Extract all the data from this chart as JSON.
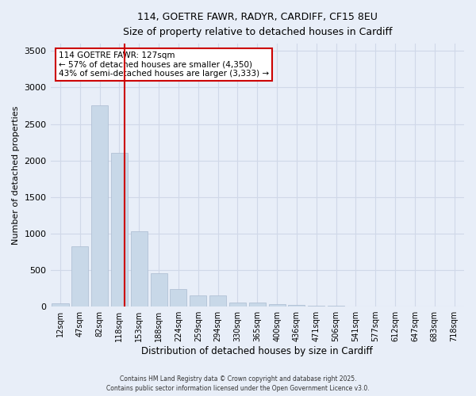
{
  "title_line1": "114, GOETRE FAWR, RADYR, CARDIFF, CF15 8EU",
  "title_line2": "Size of property relative to detached houses in Cardiff",
  "xlabel": "Distribution of detached houses by size in Cardiff",
  "ylabel": "Number of detached properties",
  "bar_categories": [
    "12sqm",
    "47sqm",
    "82sqm",
    "118sqm",
    "153sqm",
    "188sqm",
    "224sqm",
    "259sqm",
    "294sqm",
    "330sqm",
    "365sqm",
    "400sqm",
    "436sqm",
    "471sqm",
    "506sqm",
    "541sqm",
    "577sqm",
    "612sqm",
    "647sqm",
    "683sqm",
    "718sqm"
  ],
  "bar_values": [
    47,
    830,
    2750,
    2100,
    1030,
    460,
    240,
    150,
    150,
    60,
    60,
    30,
    20,
    10,
    8,
    5,
    5,
    5,
    3,
    3,
    2
  ],
  "bar_color": "#c8d8e8",
  "bar_edgecolor": "#aabbd0",
  "grid_color": "#d0d8e8",
  "background_color": "#e8eef8",
  "vline_color": "#cc0000",
  "annotation_line1": "114 GOETRE FAWR: 127sqm",
  "annotation_line2": "← 57% of detached houses are smaller (4,350)",
  "annotation_line3": "43% of semi-detached houses are larger (3,333) →",
  "annotation_box_color": "#ffffff",
  "annotation_border_color": "#cc0000",
  "ylim": [
    0,
    3600
  ],
  "yticks": [
    0,
    500,
    1000,
    1500,
    2000,
    2500,
    3000,
    3500
  ],
  "footer_line1": "Contains HM Land Registry data © Crown copyright and database right 2025.",
  "footer_line2": "Contains public sector information licensed under the Open Government Licence v3.0."
}
